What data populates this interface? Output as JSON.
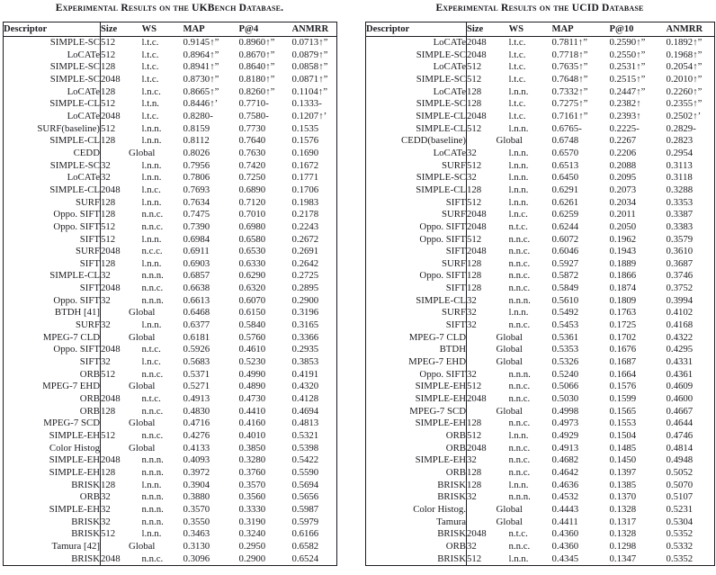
{
  "tables": [
    {
      "caption": "Experimental Results on the UKBench Database.",
      "columns": [
        "Descriptor",
        "Size",
        "WS",
        "MAP",
        "P@4",
        "ANMRR"
      ],
      "global_label": "Global",
      "rows": [
        [
          "SIMPLE-SC",
          "512",
          "l.t.c.",
          "0.9145↑”",
          "0.8960↑”",
          "0.0713↑”"
        ],
        [
          "LoCATe",
          "512",
          "l.t.c.",
          "0.8964↑”",
          "0.8670↑”",
          "0.0879↑”"
        ],
        [
          "SIMPLE-SC",
          "128",
          "l.t.c.",
          "0.8941↑”",
          "0.8640↑”",
          "0.0858↑”"
        ],
        [
          "SIMPLE-SC",
          "2048",
          "l.t.c.",
          "0.8730↑”",
          "0.8180↑”",
          "0.0871↑”"
        ],
        [
          "LoCATe",
          "128",
          "l.n.c.",
          "0.8665↑”",
          "0.8260↑”",
          "0.1104↑”"
        ],
        [
          "SIMPLE-CL",
          "512",
          "l.t.n.",
          "0.8446↑’",
          "0.7710-",
          "0.1333-"
        ],
        [
          "LoCATe",
          "2048",
          "l.t.c.",
          "0.8280-",
          "0.7580-",
          "0.1207↑’"
        ],
        [
          "SURF(baseline)",
          "512",
          "l.n.n.",
          "0.8159",
          "0.7730",
          "0.1535"
        ],
        [
          "SIMPLE-CL",
          "128",
          "l.n.n.",
          "0.8112",
          "0.7640",
          "0.1576"
        ],
        [
          "CEDD",
          "Global",
          null,
          "0.8026",
          "0.7630",
          "0.1690"
        ],
        [
          "SIMPLE-SC",
          "32",
          "l.n.n.",
          "0.7956",
          "0.7420",
          "0.1672"
        ],
        [
          "LoCATe",
          "32",
          "l.n.n.",
          "0.7806",
          "0.7250",
          "0.1771"
        ],
        [
          "SIMPLE-CL",
          "2048",
          "l.n.c.",
          "0.7693",
          "0.6890",
          "0.1706"
        ],
        [
          "SURF",
          "128",
          "l.n.n.",
          "0.7634",
          "0.7120",
          "0.1983"
        ],
        [
          "Oppo. SIFT",
          "128",
          "n.n.c.",
          "0.7475",
          "0.7010",
          "0.2178"
        ],
        [
          "Oppo. SIFT",
          "512",
          "n.n.c.",
          "0.7390",
          "0.6980",
          "0.2243"
        ],
        [
          "SIFT",
          "512",
          "l.n.n.",
          "0.6984",
          "0.6580",
          "0.2672"
        ],
        [
          "SURF",
          "2048",
          "n.c.c.",
          "0.6911",
          "0.6530",
          "0.2691"
        ],
        [
          "SIFT",
          "128",
          "l.n.n.",
          "0.6903",
          "0.6330",
          "0.2642"
        ],
        [
          "SIMPLE-CL",
          "32",
          "n.n.n.",
          "0.6857",
          "0.6290",
          "0.2725"
        ],
        [
          "SIFT",
          "2048",
          "n.n.c.",
          "0.6638",
          "0.6320",
          "0.2895"
        ],
        [
          "Oppo. SIFT",
          "32",
          "n.n.n.",
          "0.6613",
          "0.6070",
          "0.2900"
        ],
        [
          "BTDH [41]",
          "Global",
          null,
          "0.6468",
          "0.6150",
          "0.3196"
        ],
        [
          "SURF",
          "32",
          "l.n.n.",
          "0.6377",
          "0.5840",
          "0.3165"
        ],
        [
          "MPEG-7 CLD",
          "Global",
          null,
          "0.6181",
          "0.5760",
          "0.3366"
        ],
        [
          "Oppo. SIFT",
          "2048",
          "n.t.c.",
          "0.5926",
          "0.4610",
          "0.2935"
        ],
        [
          "SIFT",
          "32",
          "l.n.c.",
          "0.5683",
          "0.5230",
          "0.3853"
        ],
        [
          "ORB",
          "512",
          "n.n.c.",
          "0.5371",
          "0.4990",
          "0.4191"
        ],
        [
          "MPEG-7 EHD",
          "Global",
          null,
          "0.5271",
          "0.4890",
          "0.4320"
        ],
        [
          "ORB",
          "2048",
          "n.t.c.",
          "0.4913",
          "0.4730",
          "0.4128"
        ],
        [
          "ORB",
          "128",
          "n.n.c.",
          "0.4830",
          "0.4410",
          "0.4694"
        ],
        [
          "MPEG-7 SCD",
          "Global",
          null,
          "0.4716",
          "0.4160",
          "0.4813"
        ],
        [
          "SIMPLE-EH",
          "512",
          "n.n.c.",
          "0.4276",
          "0.4010",
          "0.5321"
        ],
        [
          "Color Histog",
          "Global",
          null,
          "0.4133",
          "0.3850",
          "0.5398"
        ],
        [
          "SIMPLE-EH",
          "2048",
          "n.n.n.",
          "0.4093",
          "0.3280",
          "0.5422"
        ],
        [
          "SIMPLE-EH",
          "128",
          "n.n.n.",
          "0.3972",
          "0.3760",
          "0.5590"
        ],
        [
          "BRISK",
          "128",
          "l.n.n.",
          "0.3904",
          "0.3570",
          "0.5694"
        ],
        [
          "ORB",
          "32",
          "n.n.n.",
          "0.3880",
          "0.3560",
          "0.5656"
        ],
        [
          "SIMPLE-EH",
          "32",
          "n.n.n.",
          "0.3570",
          "0.3330",
          "0.5987"
        ],
        [
          "BRISK",
          "32",
          "n.n.n.",
          "0.3550",
          "0.3190",
          "0.5979"
        ],
        [
          "BRISK",
          "512",
          "l.n.n.",
          "0.3463",
          "0.3240",
          "0.6166"
        ],
        [
          "Tamura [42]",
          "Global",
          null,
          "0.3130",
          "0.2950",
          "0.6582"
        ],
        [
          "BRISK",
          "2048",
          "n.n.c.",
          "0.3096",
          "0.2900",
          "0.6524"
        ]
      ]
    },
    {
      "caption": "Experimental Results on the UCID Database",
      "columns": [
        "Descriptor",
        "Size",
        "WS",
        "MAP",
        "P@10",
        "ANMRR"
      ],
      "global_label": "Global",
      "rows": [
        [
          "LoCATe",
          "2048",
          "l.t.c.",
          "0.7811↑”",
          "0.2590↑”",
          "0.1892↑”"
        ],
        [
          "SIMPLE-SC",
          "2048",
          "l.t.c.",
          "0.7718↑”",
          "0.2550↑”",
          "0.1968↑”"
        ],
        [
          "LoCATe",
          "512",
          "l.t.c.",
          "0.7635↑”",
          "0.2531↑”",
          "0.2054↑”"
        ],
        [
          "SIMPLE-SC",
          "512",
          "l.t.c.",
          "0.7648↑”",
          "0.2515↑”",
          "0.2010↑”"
        ],
        [
          "LoCATe",
          "128",
          "l.n.n.",
          "0.7332↑”",
          "0.2447↑”",
          "0.2260↑”"
        ],
        [
          "SIMPLE-SC",
          "128",
          "l.t.c.",
          "0.7275↑”",
          "0.2382↑",
          "0.2355↑”"
        ],
        [
          "SIMPLE-CL",
          "2048",
          "l.t.c.",
          "0.7161↑”",
          "0.2393↑",
          "0.2502↑’"
        ],
        [
          "SIMPLE-CL",
          "512",
          "l.n.n.",
          "0.6765-",
          "0.2225-",
          "0.2829-"
        ],
        [
          "CEDD(baseline)",
          "Global",
          null,
          "0.6748",
          "0.2267",
          "0.2823"
        ],
        [
          "LoCATe",
          "32",
          "l.n.n.",
          "0.6570",
          "0.2206",
          "0.2954"
        ],
        [
          "SURF",
          "512",
          "l.n.n.",
          "0.6513",
          "0.2088",
          "0.3113"
        ],
        [
          "SIMPLE-SC",
          "32",
          "l.n.n.",
          "0.6450",
          "0.2095",
          "0.3118"
        ],
        [
          "SIMPLE-CL",
          "128",
          "l.n.n.",
          "0.6291",
          "0.2073",
          "0.3288"
        ],
        [
          "SIFT",
          "512",
          "l.n.n.",
          "0.6261",
          "0.2034",
          "0.3353"
        ],
        [
          "SURF",
          "2048",
          "l.n.c.",
          "0.6259",
          "0.2011",
          "0.3387"
        ],
        [
          "Oppo. SIFT",
          "2048",
          "n.t.c.",
          "0.6244",
          "0.2050",
          "0.3383"
        ],
        [
          "Oppo. SIFT",
          "512",
          "n.n.c.",
          "0.6072",
          "0.1962",
          "0.3579"
        ],
        [
          "SIFT",
          "2048",
          "n.n.c.",
          "0.6046",
          "0.1943",
          "0.3610"
        ],
        [
          "SURF",
          "128",
          "n.n.c.",
          "0.5927",
          "0.1889",
          "0.3687"
        ],
        [
          "Oppo. SIFT",
          "128",
          "n.n.c.",
          "0.5872",
          "0.1866",
          "0.3746"
        ],
        [
          "SIFT",
          "128",
          "n.n.c.",
          "0.5849",
          "0.1874",
          "0.3752"
        ],
        [
          "SIMPLE-CL",
          "32",
          "n.n.n.",
          "0.5610",
          "0.1809",
          "0.3994"
        ],
        [
          "SURF",
          "32",
          "l.n.n.",
          "0.5492",
          "0.1763",
          "0.4102"
        ],
        [
          "SIFT",
          "32",
          "n.n.c.",
          "0.5453",
          "0.1725",
          "0.4168"
        ],
        [
          "MPEG-7 CLD",
          "Global",
          null,
          "0.5361",
          "0.1702",
          "0.4322"
        ],
        [
          "BTDH",
          "Global",
          null,
          "0.5353",
          "0.1676",
          "0.4295"
        ],
        [
          "MPEG-7 EHD",
          "Global",
          null,
          "0.5326",
          "0.1687",
          "0.4331"
        ],
        [
          "Oppo. SIFT",
          "32",
          "n.n.n.",
          "0.5240",
          "0.1664",
          "0.4361"
        ],
        [
          "SIMPLE-EH",
          "512",
          "n.n.c.",
          "0.5066",
          "0.1576",
          "0.4609"
        ],
        [
          "SIMPLE-EH",
          "2048",
          "n.n.c.",
          "0.5030",
          "0.1599",
          "0.4600"
        ],
        [
          "MPEG-7 SCD",
          "Global",
          null,
          "0.4998",
          "0.1565",
          "0.4667"
        ],
        [
          "SIMPLE-EH",
          "128",
          "n.n.c.",
          "0.4973",
          "0.1553",
          "0.4644"
        ],
        [
          "ORB",
          "512",
          "l.n.n.",
          "0.4929",
          "0.1504",
          "0.4746"
        ],
        [
          "ORB",
          "2048",
          "n.n.c.",
          "0.4913",
          "0.1485",
          "0.4814"
        ],
        [
          "SIMPLE-EH",
          "32",
          "n.n.c.",
          "0.4682",
          "0.1450",
          "0.4948"
        ],
        [
          "ORB",
          "128",
          "n.n.c.",
          "0.4642",
          "0.1397",
          "0.5052"
        ],
        [
          "BRISK",
          "128",
          "l.n.n.",
          "0.4636",
          "0.1385",
          "0.5070"
        ],
        [
          "BRISK",
          "32",
          "n.n.n.",
          "0.4532",
          "0.1370",
          "0.5107"
        ],
        [
          "Color Histog.",
          "Global",
          null,
          "0.4443",
          "0.1328",
          "0.5231"
        ],
        [
          "Tamura",
          "Global",
          null,
          "0.4411",
          "0.1317",
          "0.5304"
        ],
        [
          "BRISK",
          "2048",
          "n.t.c.",
          "0.4360",
          "0.1328",
          "0.5352"
        ],
        [
          "ORB",
          "32",
          "n.n.c.",
          "0.4360",
          "0.1298",
          "0.5332"
        ],
        [
          "BRISK",
          "512",
          "l.n.n.",
          "0.4345",
          "0.1347",
          "0.5352"
        ]
      ]
    }
  ]
}
